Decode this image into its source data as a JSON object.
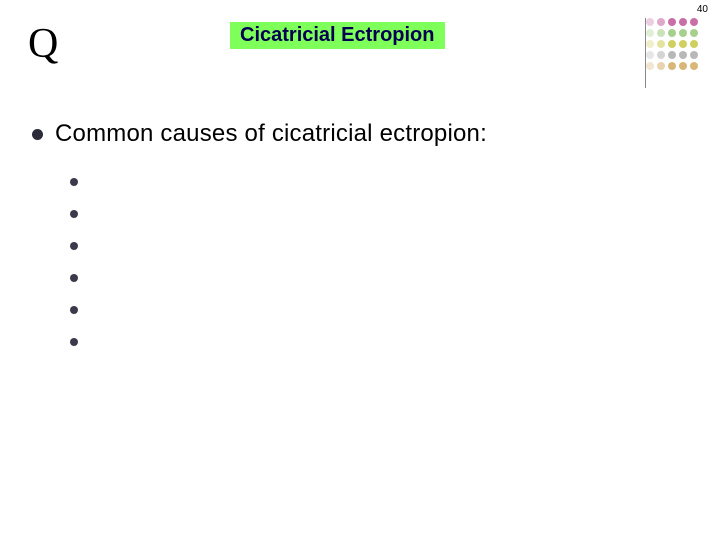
{
  "page_number": "40",
  "q_mark": "Q",
  "title": {
    "text": "Cicatricial Ectropion",
    "background_color": "#7fff5a",
    "text_color": "#000050",
    "fontsize": 20
  },
  "main_bullet": {
    "text": "Common causes of cicatricial ectropion:",
    "fontsize": 24,
    "bullet_color": "#2b2b3a"
  },
  "sub_bullets": {
    "count": 6,
    "bullet_color": "#3a3a4a"
  },
  "decor_grid": {
    "rows": 5,
    "cols": 5,
    "colors": [
      [
        "#c96fa8",
        "#c96fa8",
        "#c96fa8",
        "#c96fa8",
        "#c96fa8"
      ],
      [
        "#a8d08d",
        "#a8d08d",
        "#a8d08d",
        "#a8d08d",
        "#a8d08d"
      ],
      [
        "#d0d060",
        "#d0d060",
        "#d0d060",
        "#d0d060",
        "#d0d060"
      ],
      [
        "#b8b8b8",
        "#b8b8b8",
        "#b8b8b8",
        "#b8b8b8",
        "#b8b8b8"
      ],
      [
        "#d8b878",
        "#d8b878",
        "#d8b878",
        "#d8b878",
        "#d8b878"
      ]
    ]
  },
  "background_color": "#ffffff"
}
